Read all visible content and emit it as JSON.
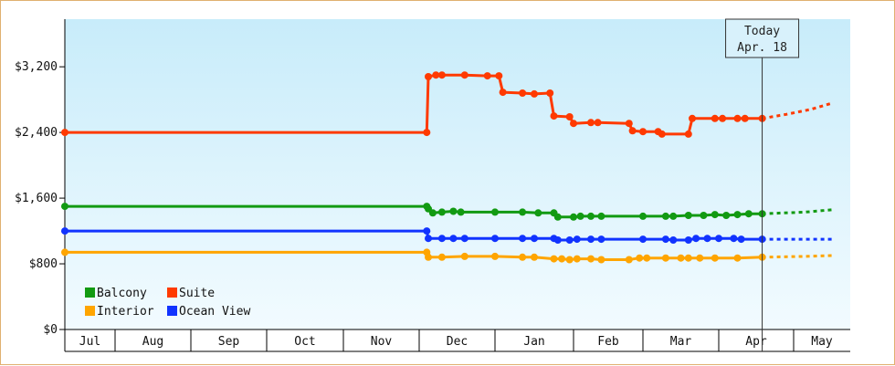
{
  "chart_data": {
    "type": "line",
    "y_ticks": [
      "$0",
      "$800",
      "$1,600",
      "$2,400",
      "$3,200"
    ],
    "y_tick_values": [
      0,
      800,
      1600,
      2400,
      3200
    ],
    "ylim": [
      0,
      3780
    ],
    "x_months": [
      "Jul",
      "Aug",
      "Sep",
      "Oct",
      "Nov",
      "Dec",
      "Jan",
      "Feb",
      "Mar",
      "Apr",
      "May"
    ],
    "today": {
      "line1": "Today",
      "line2": "Apr. 18",
      "month_position": 9.58
    },
    "background": {
      "top": "#c8ecfa",
      "bottom": "#f2fbff"
    },
    "grid": false,
    "legend_position": "bottom-left",
    "legend": [
      {
        "name": "Balcony",
        "color": "#129a12"
      },
      {
        "name": "Suite",
        "color": "#ff3a00"
      },
      {
        "name": "Interior",
        "color": "#ffa500"
      },
      {
        "name": "Ocean View",
        "color": "#1133ff"
      }
    ],
    "series": [
      {
        "name": "Suite",
        "color": "#ff3a00",
        "points": [
          [
            0.0,
            2400
          ],
          [
            5.1,
            2400
          ],
          [
            5.12,
            3080
          ],
          [
            5.22,
            3100
          ],
          [
            5.3,
            3100
          ],
          [
            5.6,
            3100
          ],
          [
            5.9,
            3090
          ],
          [
            6.05,
            3090
          ],
          [
            6.1,
            2890
          ],
          [
            6.35,
            2880
          ],
          [
            6.5,
            2870
          ],
          [
            6.7,
            2880
          ],
          [
            6.75,
            2600
          ],
          [
            6.95,
            2590
          ],
          [
            7.0,
            2510
          ],
          [
            7.25,
            2520
          ],
          [
            7.35,
            2520
          ],
          [
            7.8,
            2510
          ],
          [
            7.85,
            2420
          ],
          [
            8.0,
            2410
          ],
          [
            8.2,
            2410
          ],
          [
            8.25,
            2380
          ],
          [
            8.6,
            2380
          ],
          [
            8.65,
            2570
          ],
          [
            8.95,
            2570
          ],
          [
            9.05,
            2570
          ],
          [
            9.25,
            2570
          ],
          [
            9.35,
            2570
          ],
          [
            9.58,
            2570
          ]
        ],
        "forecast": [
          [
            9.58,
            2570
          ],
          [
            9.9,
            2620
          ],
          [
            10.3,
            2680
          ],
          [
            10.7,
            2760
          ]
        ]
      },
      {
        "name": "Balcony",
        "color": "#129a12",
        "points": [
          [
            0.0,
            1500
          ],
          [
            5.1,
            1500
          ],
          [
            5.12,
            1470
          ],
          [
            5.18,
            1420
          ],
          [
            5.3,
            1430
          ],
          [
            5.45,
            1440
          ],
          [
            5.55,
            1430
          ],
          [
            6.0,
            1430
          ],
          [
            6.35,
            1430
          ],
          [
            6.55,
            1420
          ],
          [
            6.75,
            1420
          ],
          [
            6.8,
            1370
          ],
          [
            7.0,
            1370
          ],
          [
            7.1,
            1380
          ],
          [
            7.25,
            1380
          ],
          [
            7.4,
            1380
          ],
          [
            8.0,
            1380
          ],
          [
            8.3,
            1380
          ],
          [
            8.4,
            1380
          ],
          [
            8.6,
            1390
          ],
          [
            8.8,
            1390
          ],
          [
            8.95,
            1400
          ],
          [
            9.1,
            1390
          ],
          [
            9.25,
            1400
          ],
          [
            9.4,
            1410
          ],
          [
            9.58,
            1410
          ]
        ],
        "forecast": [
          [
            9.58,
            1410
          ],
          [
            10.2,
            1430
          ],
          [
            10.7,
            1460
          ]
        ]
      },
      {
        "name": "Ocean View",
        "color": "#1133ff",
        "points": [
          [
            0.0,
            1200
          ],
          [
            5.1,
            1200
          ],
          [
            5.12,
            1110
          ],
          [
            5.3,
            1110
          ],
          [
            5.45,
            1110
          ],
          [
            5.6,
            1110
          ],
          [
            6.0,
            1110
          ],
          [
            6.35,
            1110
          ],
          [
            6.5,
            1110
          ],
          [
            6.75,
            1110
          ],
          [
            6.8,
            1090
          ],
          [
            6.95,
            1090
          ],
          [
            7.05,
            1100
          ],
          [
            7.25,
            1100
          ],
          [
            7.4,
            1100
          ],
          [
            8.0,
            1100
          ],
          [
            8.3,
            1100
          ],
          [
            8.4,
            1090
          ],
          [
            8.6,
            1090
          ],
          [
            8.7,
            1110
          ],
          [
            8.85,
            1110
          ],
          [
            9.0,
            1110
          ],
          [
            9.2,
            1110
          ],
          [
            9.3,
            1100
          ],
          [
            9.58,
            1100
          ]
        ],
        "forecast": [
          [
            9.58,
            1100
          ],
          [
            10.2,
            1100
          ],
          [
            10.7,
            1100
          ]
        ]
      },
      {
        "name": "Interior",
        "color": "#ffa500",
        "points": [
          [
            0.0,
            940
          ],
          [
            5.1,
            940
          ],
          [
            5.12,
            880
          ],
          [
            5.3,
            880
          ],
          [
            5.6,
            890
          ],
          [
            6.0,
            890
          ],
          [
            6.35,
            880
          ],
          [
            6.5,
            880
          ],
          [
            6.75,
            860
          ],
          [
            6.85,
            860
          ],
          [
            6.95,
            850
          ],
          [
            7.05,
            860
          ],
          [
            7.25,
            860
          ],
          [
            7.4,
            850
          ],
          [
            7.8,
            850
          ],
          [
            7.95,
            870
          ],
          [
            8.05,
            870
          ],
          [
            8.3,
            870
          ],
          [
            8.5,
            870
          ],
          [
            8.6,
            870
          ],
          [
            8.75,
            870
          ],
          [
            8.95,
            870
          ],
          [
            9.25,
            870
          ],
          [
            9.58,
            880
          ]
        ],
        "forecast": [
          [
            9.58,
            880
          ],
          [
            10.2,
            890
          ],
          [
            10.7,
            900
          ]
        ]
      }
    ]
  }
}
